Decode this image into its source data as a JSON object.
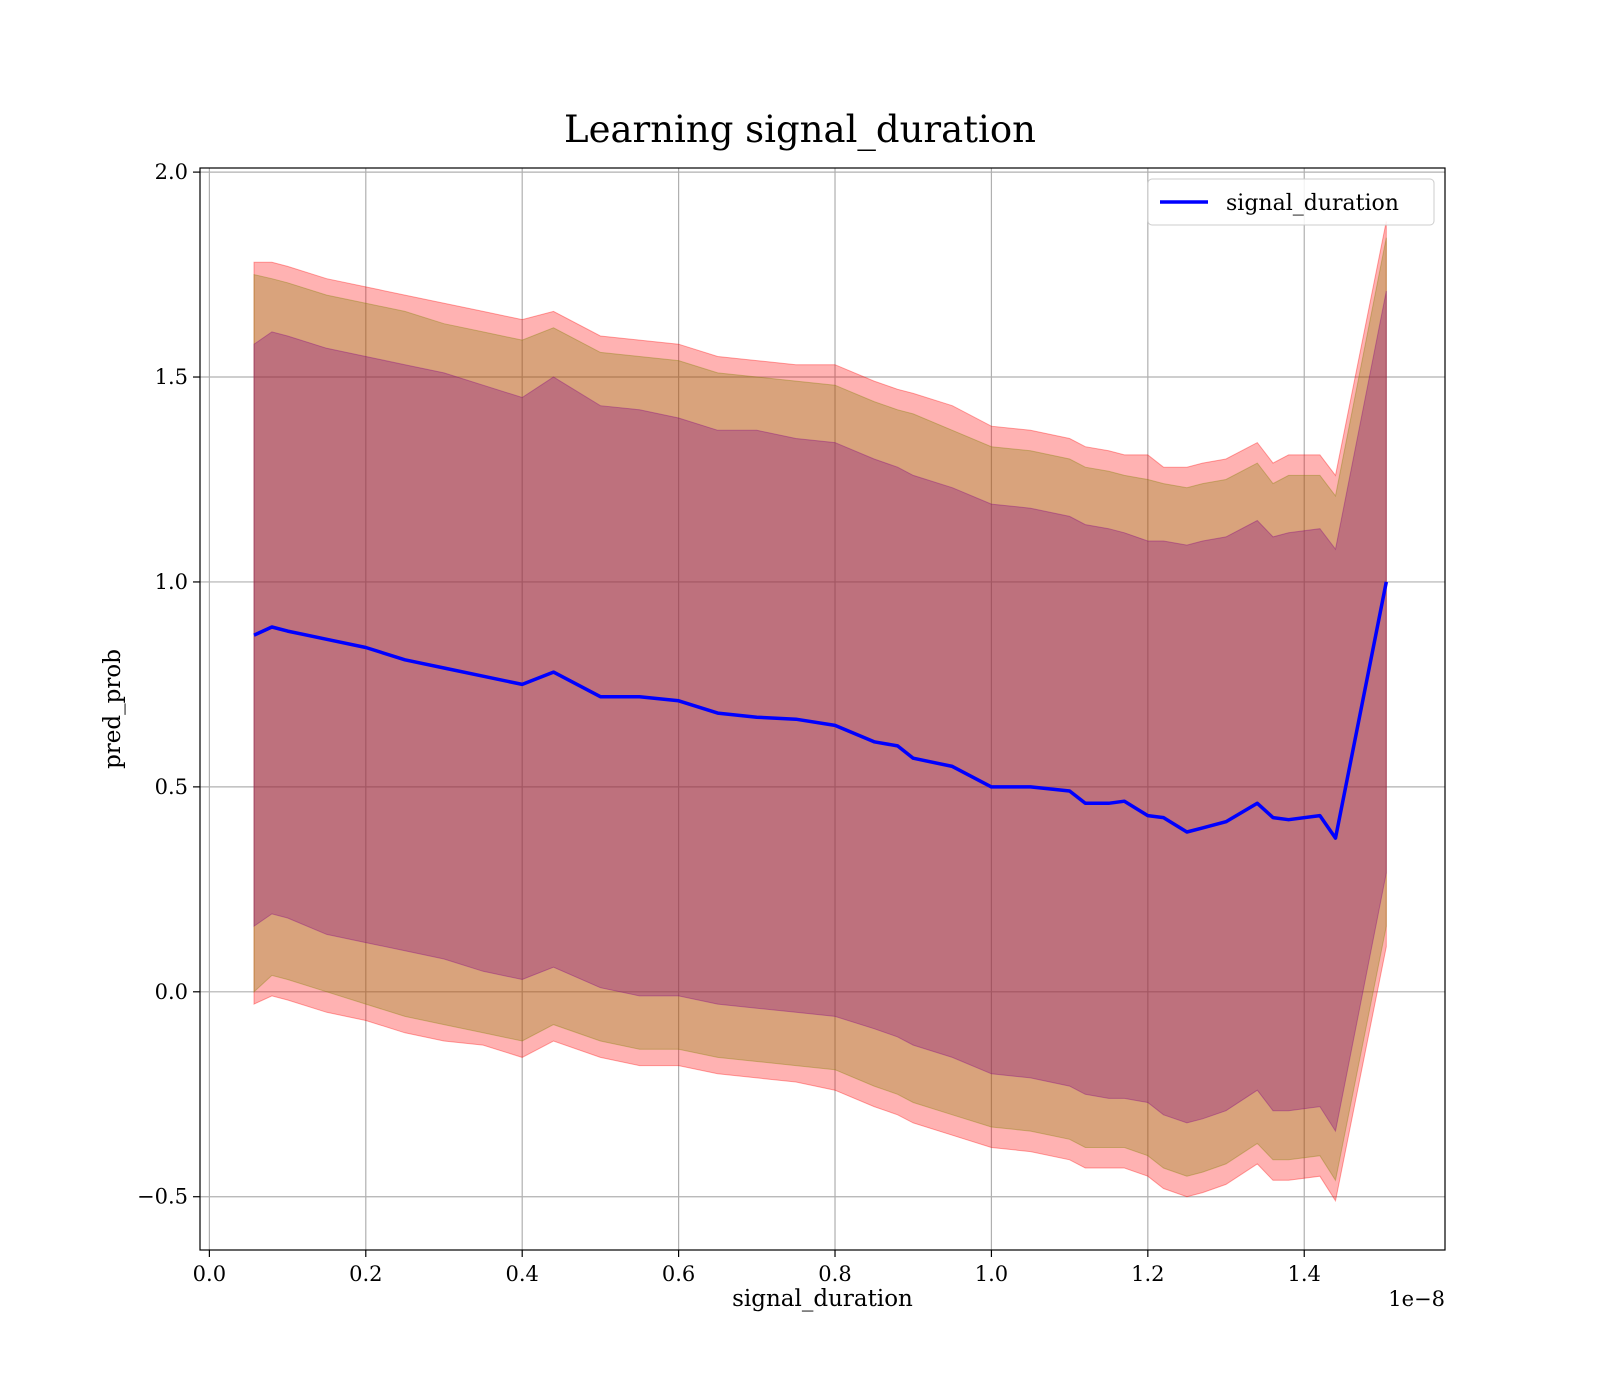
{
  "chart_data": {
    "type": "line",
    "title": "Learning signal_duration",
    "xlabel": "signal_duration",
    "ylabel": "pred_prob",
    "x_offset_label": "1e−8",
    "xlim": [
      -0.012,
      1.58
    ],
    "ylim": [
      -0.63,
      2.01
    ],
    "xticks": [
      0.0,
      0.2,
      0.4,
      0.6,
      0.8,
      1.0,
      1.2,
      1.4
    ],
    "xtick_labels": [
      "0.0",
      "0.2",
      "0.4",
      "0.6",
      "0.8",
      "1.0",
      "1.2",
      "1.4"
    ],
    "yticks": [
      -0.5,
      0.0,
      0.5,
      1.0,
      1.5,
      2.0
    ],
    "ytick_labels": [
      "−0.5",
      "0.0",
      "0.5",
      "1.0",
      "1.5",
      "2.0"
    ],
    "grid": true,
    "legend_position": "top-right",
    "colors": {
      "line": "#0000ff",
      "band_outer": "#ff0000",
      "band_mid": "#808000",
      "band_inner": "#800080"
    },
    "series": [
      {
        "name": "signal_duration",
        "x": [
          0.057,
          0.08,
          0.1,
          0.15,
          0.2,
          0.25,
          0.3,
          0.35,
          0.4,
          0.44,
          0.5,
          0.55,
          0.6,
          0.65,
          0.7,
          0.75,
          0.8,
          0.85,
          0.88,
          0.9,
          0.95,
          1.0,
          1.05,
          1.1,
          1.12,
          1.15,
          1.17,
          1.2,
          1.22,
          1.25,
          1.27,
          1.3,
          1.34,
          1.36,
          1.38,
          1.42,
          1.44,
          1.505
        ],
        "y": [
          0.87,
          0.89,
          0.88,
          0.86,
          0.84,
          0.81,
          0.79,
          0.77,
          0.75,
          0.78,
          0.72,
          0.72,
          0.71,
          0.68,
          0.67,
          0.665,
          0.65,
          0.61,
          0.6,
          0.57,
          0.55,
          0.5,
          0.5,
          0.49,
          0.46,
          0.46,
          0.465,
          0.43,
          0.425,
          0.39,
          0.4,
          0.415,
          0.46,
          0.425,
          0.42,
          0.43,
          0.375,
          1.0
        ]
      }
    ],
    "bands": [
      {
        "color": "#ff0000",
        "upper": [
          1.78,
          1.78,
          1.77,
          1.74,
          1.72,
          1.7,
          1.68,
          1.66,
          1.64,
          1.66,
          1.6,
          1.59,
          1.58,
          1.55,
          1.54,
          1.53,
          1.53,
          1.49,
          1.47,
          1.46,
          1.43,
          1.38,
          1.37,
          1.35,
          1.33,
          1.32,
          1.31,
          1.31,
          1.28,
          1.28,
          1.29,
          1.3,
          1.34,
          1.29,
          1.31,
          1.31,
          1.26,
          1.88
        ],
        "lower": [
          -0.03,
          -0.01,
          -0.02,
          -0.05,
          -0.07,
          -0.1,
          -0.12,
          -0.13,
          -0.16,
          -0.12,
          -0.16,
          -0.18,
          -0.18,
          -0.2,
          -0.21,
          -0.22,
          -0.24,
          -0.28,
          -0.3,
          -0.32,
          -0.35,
          -0.38,
          -0.39,
          -0.41,
          -0.43,
          -0.43,
          -0.43,
          -0.45,
          -0.48,
          -0.5,
          -0.49,
          -0.47,
          -0.42,
          -0.46,
          -0.46,
          -0.45,
          -0.51,
          0.11
        ]
      },
      {
        "color": "#808000",
        "upper": [
          1.75,
          1.74,
          1.73,
          1.7,
          1.68,
          1.66,
          1.63,
          1.61,
          1.59,
          1.62,
          1.56,
          1.55,
          1.54,
          1.51,
          1.5,
          1.49,
          1.48,
          1.44,
          1.42,
          1.41,
          1.37,
          1.33,
          1.32,
          1.3,
          1.28,
          1.27,
          1.26,
          1.25,
          1.24,
          1.23,
          1.24,
          1.25,
          1.29,
          1.24,
          1.26,
          1.26,
          1.21,
          1.84
        ],
        "lower": [
          0.0,
          0.04,
          0.03,
          0.0,
          -0.03,
          -0.06,
          -0.08,
          -0.1,
          -0.12,
          -0.08,
          -0.12,
          -0.14,
          -0.14,
          -0.16,
          -0.17,
          -0.18,
          -0.19,
          -0.23,
          -0.25,
          -0.27,
          -0.3,
          -0.33,
          -0.34,
          -0.36,
          -0.38,
          -0.38,
          -0.38,
          -0.4,
          -0.43,
          -0.45,
          -0.44,
          -0.42,
          -0.37,
          -0.41,
          -0.41,
          -0.4,
          -0.46,
          0.16
        ]
      },
      {
        "color": "#800080",
        "upper": [
          1.58,
          1.61,
          1.6,
          1.57,
          1.55,
          1.53,
          1.51,
          1.48,
          1.45,
          1.5,
          1.43,
          1.42,
          1.4,
          1.37,
          1.37,
          1.35,
          1.34,
          1.3,
          1.28,
          1.26,
          1.23,
          1.19,
          1.18,
          1.16,
          1.14,
          1.13,
          1.12,
          1.1,
          1.1,
          1.09,
          1.1,
          1.11,
          1.15,
          1.11,
          1.12,
          1.13,
          1.08,
          1.71
        ],
        "lower": [
          0.16,
          0.19,
          0.18,
          0.14,
          0.12,
          0.1,
          0.08,
          0.05,
          0.03,
          0.06,
          0.01,
          -0.01,
          -0.01,
          -0.03,
          -0.04,
          -0.05,
          -0.06,
          -0.09,
          -0.11,
          -0.13,
          -0.16,
          -0.2,
          -0.21,
          -0.23,
          -0.25,
          -0.26,
          -0.26,
          -0.27,
          -0.3,
          -0.32,
          -0.31,
          -0.29,
          -0.24,
          -0.29,
          -0.29,
          -0.28,
          -0.34,
          0.29
        ]
      }
    ]
  }
}
